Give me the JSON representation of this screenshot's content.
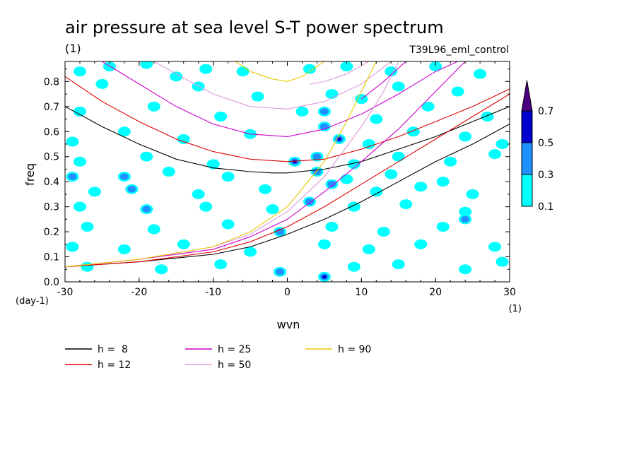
{
  "chart_data": {
    "type": "heatmap",
    "title": "air pressure at sea level S-T power spectrum",
    "subtitle_left": "(1)",
    "subtitle_right": "T39L96_eml_control",
    "xlabel": "wvn",
    "ylabel": "freq",
    "x_unit": "(1)",
    "y_unit": "(day-1)",
    "xlim": [
      -30,
      30
    ],
    "ylim": [
      0,
      0.88
    ],
    "xticks": [
      -30,
      -20,
      -10,
      0,
      10,
      20,
      30
    ],
    "yticks": [
      0.0,
      0.1,
      0.2,
      0.3,
      0.4,
      0.5,
      0.6,
      0.7,
      0.8
    ],
    "colorbar": {
      "levels": [
        0.1,
        0.3,
        0.5,
        0.7
      ],
      "colors": [
        "#00ffff",
        "#1e90ff",
        "#0000cc",
        "#4b0082"
      ],
      "extend": "max"
    },
    "blobs": [
      {
        "x": -28,
        "y": 0.84,
        "level": 1
      },
      {
        "x": -24,
        "y": 0.86,
        "level": 1
      },
      {
        "x": -19,
        "y": 0.87,
        "level": 1
      },
      {
        "x": -15,
        "y": 0.82,
        "level": 1
      },
      {
        "x": -11,
        "y": 0.85,
        "level": 1
      },
      {
        "x": -6,
        "y": 0.84,
        "level": 1
      },
      {
        "x": 3,
        "y": 0.85,
        "level": 1
      },
      {
        "x": 8,
        "y": 0.86,
        "level": 1
      },
      {
        "x": 14,
        "y": 0.84,
        "level": 1
      },
      {
        "x": 20,
        "y": 0.86,
        "level": 1
      },
      {
        "x": 26,
        "y": 0.83,
        "level": 1
      },
      {
        "x": -25,
        "y": 0.79,
        "level": 1
      },
      {
        "x": -12,
        "y": 0.78,
        "level": 1
      },
      {
        "x": -4,
        "y": 0.74,
        "level": 1
      },
      {
        "x": 6,
        "y": 0.75,
        "level": 1
      },
      {
        "x": 10,
        "y": 0.73,
        "level": 1
      },
      {
        "x": 15,
        "y": 0.78,
        "level": 1
      },
      {
        "x": 23,
        "y": 0.76,
        "level": 1
      },
      {
        "x": -28,
        "y": 0.68,
        "level": 1
      },
      {
        "x": -18,
        "y": 0.7,
        "level": 1
      },
      {
        "x": -9,
        "y": 0.66,
        "level": 1
      },
      {
        "x": 2,
        "y": 0.68,
        "level": 1
      },
      {
        "x": 5,
        "y": 0.68,
        "level": 2
      },
      {
        "x": 12,
        "y": 0.65,
        "level": 1
      },
      {
        "x": 19,
        "y": 0.7,
        "level": 1
      },
      {
        "x": 27,
        "y": 0.66,
        "level": 1
      },
      {
        "x": -29,
        "y": 0.56,
        "level": 1
      },
      {
        "x": -22,
        "y": 0.6,
        "level": 1
      },
      {
        "x": -14,
        "y": 0.57,
        "level": 1
      },
      {
        "x": -5,
        "y": 0.59,
        "level": 1
      },
      {
        "x": 5,
        "y": 0.62,
        "level": 2
      },
      {
        "x": 7,
        "y": 0.57,
        "level": 3
      },
      {
        "x": 11,
        "y": 0.55,
        "level": 1
      },
      {
        "x": 17,
        "y": 0.6,
        "level": 1
      },
      {
        "x": 24,
        "y": 0.58,
        "level": 1
      },
      {
        "x": 29,
        "y": 0.55,
        "level": 1
      },
      {
        "x": -28,
        "y": 0.48,
        "level": 1
      },
      {
        "x": -19,
        "y": 0.5,
        "level": 1
      },
      {
        "x": -10,
        "y": 0.47,
        "level": 1
      },
      {
        "x": 1,
        "y": 0.48,
        "level": 3
      },
      {
        "x": 4,
        "y": 0.5,
        "level": 2
      },
      {
        "x": 9,
        "y": 0.47,
        "level": 1
      },
      {
        "x": 15,
        "y": 0.5,
        "level": 1
      },
      {
        "x": 22,
        "y": 0.48,
        "level": 1
      },
      {
        "x": 28,
        "y": 0.51,
        "level": 1
      },
      {
        "x": -29,
        "y": 0.42,
        "level": 2
      },
      {
        "x": -22,
        "y": 0.42,
        "level": 2
      },
      {
        "x": -16,
        "y": 0.44,
        "level": 1
      },
      {
        "x": -8,
        "y": 0.42,
        "level": 1
      },
      {
        "x": 4,
        "y": 0.44,
        "level": 2
      },
      {
        "x": 8,
        "y": 0.41,
        "level": 1
      },
      {
        "x": 14,
        "y": 0.43,
        "level": 1
      },
      {
        "x": 21,
        "y": 0.4,
        "level": 1
      },
      {
        "x": -26,
        "y": 0.36,
        "level": 1
      },
      {
        "x": -21,
        "y": 0.37,
        "level": 2
      },
      {
        "x": -12,
        "y": 0.35,
        "level": 1
      },
      {
        "x": -3,
        "y": 0.37,
        "level": 1
      },
      {
        "x": 6,
        "y": 0.39,
        "level": 2
      },
      {
        "x": 12,
        "y": 0.36,
        "level": 1
      },
      {
        "x": 18,
        "y": 0.38,
        "level": 1
      },
      {
        "x": 25,
        "y": 0.35,
        "level": 1
      },
      {
        "x": -28,
        "y": 0.3,
        "level": 1
      },
      {
        "x": -19,
        "y": 0.29,
        "level": 2
      },
      {
        "x": -11,
        "y": 0.3,
        "level": 1
      },
      {
        "x": -2,
        "y": 0.29,
        "level": 1
      },
      {
        "x": 3,
        "y": 0.32,
        "level": 2
      },
      {
        "x": 9,
        "y": 0.3,
        "level": 1
      },
      {
        "x": 16,
        "y": 0.31,
        "level": 1
      },
      {
        "x": 24,
        "y": 0.28,
        "level": 1
      },
      {
        "x": -27,
        "y": 0.22,
        "level": 1
      },
      {
        "x": -18,
        "y": 0.21,
        "level": 1
      },
      {
        "x": -8,
        "y": 0.23,
        "level": 1
      },
      {
        "x": -1,
        "y": 0.2,
        "level": 2
      },
      {
        "x": 6,
        "y": 0.22,
        "level": 1
      },
      {
        "x": 13,
        "y": 0.2,
        "level": 1
      },
      {
        "x": 21,
        "y": 0.22,
        "level": 1
      },
      {
        "x": 24,
        "y": 0.25,
        "level": 2
      },
      {
        "x": -29,
        "y": 0.14,
        "level": 1
      },
      {
        "x": -22,
        "y": 0.13,
        "level": 1
      },
      {
        "x": -14,
        "y": 0.15,
        "level": 1
      },
      {
        "x": -5,
        "y": 0.12,
        "level": 1
      },
      {
        "x": 5,
        "y": 0.15,
        "level": 1
      },
      {
        "x": 11,
        "y": 0.13,
        "level": 1
      },
      {
        "x": 18,
        "y": 0.15,
        "level": 1
      },
      {
        "x": 28,
        "y": 0.14,
        "level": 1
      },
      {
        "x": -27,
        "y": 0.06,
        "level": 1
      },
      {
        "x": -17,
        "y": 0.05,
        "level": 1
      },
      {
        "x": -9,
        "y": 0.07,
        "level": 1
      },
      {
        "x": -1,
        "y": 0.04,
        "level": 2
      },
      {
        "x": 5,
        "y": 0.02,
        "level": 3
      },
      {
        "x": 9,
        "y": 0.06,
        "level": 1
      },
      {
        "x": 15,
        "y": 0.07,
        "level": 1
      },
      {
        "x": 24,
        "y": 0.05,
        "level": 1
      },
      {
        "x": 29,
        "y": 0.08,
        "level": 1
      }
    ],
    "series": [
      {
        "name": "h =  8",
        "color": "#000000",
        "family": "inertio-gravity",
        "label_in_legend": true
      },
      {
        "name": "h = 12",
        "color": "#dd0000",
        "family": "inertio-gravity",
        "label_in_legend": true
      },
      {
        "name": "h = 25",
        "color": "#cc00cc",
        "family": "inertio-gravity",
        "label_in_legend": true
      },
      {
        "name": "h = 50",
        "color": "#dd99dd",
        "family": "inertio-gravity",
        "label_in_legend": true
      },
      {
        "name": "h = 90",
        "color": "#e8c800",
        "family": "inertio-gravity",
        "label_in_legend": true
      }
    ],
    "curves": [
      {
        "series": 0,
        "kind": "ig",
        "points": [
          [
            -30,
            0.7
          ],
          [
            -25,
            0.62
          ],
          [
            -20,
            0.55
          ],
          [
            -15,
            0.49
          ],
          [
            -10,
            0.455
          ],
          [
            -5,
            0.44
          ],
          [
            -2,
            0.435
          ],
          [
            0,
            0.435
          ],
          [
            5,
            0.45
          ],
          [
            10,
            0.48
          ],
          [
            15,
            0.53
          ],
          [
            20,
            0.58
          ],
          [
            25,
            0.64
          ],
          [
            30,
            0.7
          ]
        ]
      },
      {
        "series": 0,
        "kind": "kelvin",
        "points": [
          [
            -30,
            0.06
          ],
          [
            -20,
            0.08
          ],
          [
            -10,
            0.11
          ],
          [
            -5,
            0.14
          ],
          [
            0,
            0.19
          ],
          [
            5,
            0.25
          ],
          [
            10,
            0.32
          ],
          [
            15,
            0.4
          ],
          [
            20,
            0.48
          ],
          [
            25,
            0.55
          ],
          [
            30,
            0.63
          ]
        ]
      },
      {
        "series": 1,
        "kind": "ig",
        "points": [
          [
            -30,
            0.82
          ],
          [
            -25,
            0.72
          ],
          [
            -20,
            0.64
          ],
          [
            -15,
            0.57
          ],
          [
            -10,
            0.52
          ],
          [
            -5,
            0.49
          ],
          [
            0,
            0.48
          ],
          [
            5,
            0.49
          ],
          [
            10,
            0.53
          ],
          [
            15,
            0.58
          ],
          [
            20,
            0.64
          ],
          [
            25,
            0.7
          ],
          [
            30,
            0.77
          ]
        ]
      },
      {
        "series": 1,
        "kind": "kelvin",
        "points": [
          [
            -30,
            0.06
          ],
          [
            -20,
            0.08
          ],
          [
            -10,
            0.12
          ],
          [
            -5,
            0.16
          ],
          [
            0,
            0.22
          ],
          [
            5,
            0.3
          ],
          [
            10,
            0.39
          ],
          [
            15,
            0.48
          ],
          [
            20,
            0.57
          ],
          [
            25,
            0.66
          ],
          [
            30,
            0.75
          ]
        ]
      },
      {
        "series": 2,
        "kind": "ig",
        "points": [
          [
            -25,
            0.88
          ],
          [
            -20,
            0.79
          ],
          [
            -15,
            0.7
          ],
          [
            -10,
            0.63
          ],
          [
            -5,
            0.59
          ],
          [
            0,
            0.58
          ],
          [
            5,
            0.61
          ],
          [
            10,
            0.67
          ],
          [
            15,
            0.75
          ],
          [
            20,
            0.84
          ],
          [
            23,
            0.88
          ]
        ]
      },
      {
        "series": 2,
        "kind": "kelvin",
        "points": [
          [
            -30,
            0.06
          ],
          [
            -20,
            0.09
          ],
          [
            -10,
            0.13
          ],
          [
            -5,
            0.18
          ],
          [
            0,
            0.25
          ],
          [
            5,
            0.36
          ],
          [
            10,
            0.48
          ],
          [
            15,
            0.61
          ],
          [
            20,
            0.76
          ],
          [
            24,
            0.88
          ]
        ]
      },
      {
        "series": 3,
        "kind": "ig",
        "points": [
          [
            -18,
            0.88
          ],
          [
            -15,
            0.83
          ],
          [
            -10,
            0.75
          ],
          [
            -5,
            0.7
          ],
          [
            0,
            0.69
          ],
          [
            5,
            0.72
          ],
          [
            10,
            0.79
          ],
          [
            14,
            0.88
          ]
        ]
      },
      {
        "series": 3,
        "kind": "kelvin",
        "points": [
          [
            -30,
            0.06
          ],
          [
            -20,
            0.09
          ],
          [
            -10,
            0.14
          ],
          [
            -5,
            0.19
          ],
          [
            0,
            0.28
          ],
          [
            5,
            0.42
          ],
          [
            10,
            0.62
          ],
          [
            13,
            0.76
          ],
          [
            15,
            0.88
          ]
        ]
      },
      {
        "series": 4,
        "kind": "ig",
        "points": [
          [
            -7,
            0.88
          ],
          [
            -5,
            0.84
          ],
          [
            -2,
            0.81
          ],
          [
            0,
            0.8
          ],
          [
            2,
            0.82
          ],
          [
            4,
            0.86
          ],
          [
            5,
            0.88
          ]
        ]
      },
      {
        "series": 4,
        "kind": "kelvin",
        "points": [
          [
            -30,
            0.06
          ],
          [
            -20,
            0.09
          ],
          [
            -10,
            0.14
          ],
          [
            -5,
            0.2
          ],
          [
            0,
            0.3
          ],
          [
            5,
            0.48
          ],
          [
            8,
            0.64
          ],
          [
            10,
            0.76
          ],
          [
            12,
            0.88
          ]
        ]
      },
      {
        "series": 3,
        "kind": "ig-upper",
        "points": [
          [
            11,
            0.88
          ],
          [
            8,
            0.83
          ],
          [
            5,
            0.8
          ],
          [
            3,
            0.79
          ]
        ]
      },
      {
        "series": 2,
        "kind": "ig-upper",
        "points": [
          [
            16,
            0.88
          ],
          [
            13,
            0.8
          ],
          [
            10,
            0.73
          ]
        ]
      }
    ]
  }
}
